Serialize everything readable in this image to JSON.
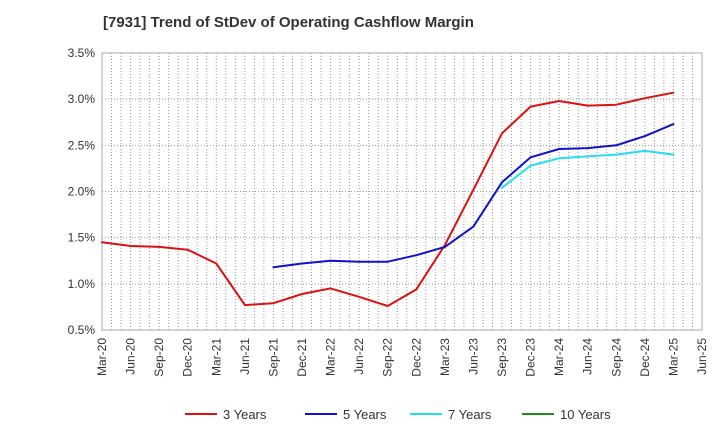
{
  "chart_data": {
    "type": "line",
    "title": "[7931]  Trend of StDev of Operating Cashflow Margin",
    "xlabel": "",
    "ylabel": "",
    "x_ticks": [
      "Mar-20",
      "Jun-20",
      "Sep-20",
      "Dec-20",
      "Mar-21",
      "Jun-21",
      "Sep-21",
      "Dec-21",
      "Mar-22",
      "Jun-22",
      "Sep-22",
      "Dec-22",
      "Mar-23",
      "Jun-23",
      "Sep-23",
      "Dec-23",
      "Mar-24",
      "Jun-24",
      "Sep-24",
      "Dec-24",
      "Mar-25",
      "Jun-25"
    ],
    "y_ticks": [
      "0.5%",
      "1.0%",
      "1.5%",
      "2.0%",
      "2.5%",
      "3.0%",
      "3.5%"
    ],
    "ylim": [
      0.5,
      3.5
    ],
    "grid": true,
    "legend_position": "bottom",
    "series": [
      {
        "name": "3 Years",
        "color": "#dd1111",
        "values": [
          1.45,
          1.41,
          1.4,
          1.37,
          1.22,
          0.77,
          0.79,
          0.89,
          0.95,
          0.86,
          0.76,
          0.94,
          1.42,
          2.02,
          2.63,
          2.92,
          2.98,
          2.93,
          2.94,
          3.01,
          3.07
        ]
      },
      {
        "name": "5 Years",
        "color": "#1111cc",
        "values": [
          null,
          null,
          null,
          null,
          null,
          null,
          1.18,
          1.22,
          1.25,
          1.24,
          1.24,
          1.31,
          1.4,
          1.62,
          2.1,
          2.37,
          2.46,
          2.47,
          2.5,
          2.6,
          2.73
        ]
      },
      {
        "name": "7 Years",
        "color": "#22e0ee",
        "values": [
          null,
          null,
          null,
          null,
          null,
          null,
          null,
          null,
          null,
          null,
          null,
          null,
          null,
          null,
          2.04,
          2.28,
          2.36,
          2.38,
          2.4,
          2.44,
          2.4
        ]
      },
      {
        "name": "10 Years",
        "color": "#228822",
        "values": []
      }
    ]
  }
}
